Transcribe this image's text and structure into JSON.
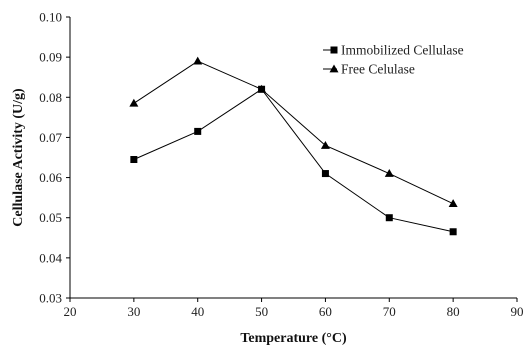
{
  "chart_data": {
    "type": "line",
    "title": "",
    "xlabel": "Temperature (°C)",
    "ylabel": "Cellulase Activity (U/g)",
    "xlim": [
      20,
      90
    ],
    "ylim": [
      0.03,
      0.1
    ],
    "xticks": [
      20,
      30,
      40,
      50,
      60,
      70,
      80,
      90
    ],
    "yticks": [
      0.03,
      0.04,
      0.05,
      0.06,
      0.07,
      0.08,
      0.09,
      0.1
    ],
    "xtick_labels": [
      "20",
      "30",
      "40",
      "50",
      "60",
      "70",
      "80",
      "90"
    ],
    "ytick_labels": [
      "0.03",
      "0.04",
      "0.05",
      "0.06",
      "0.07",
      "0.08",
      "0.09",
      "0.10"
    ],
    "grid": false,
    "legend_position": "top-right",
    "series": [
      {
        "name": "Immobilized Cellulase",
        "marker": "square",
        "color": "#000000",
        "x": [
          30,
          40,
          50,
          60,
          70,
          80
        ],
        "y": [
          0.0645,
          0.0715,
          0.082,
          0.061,
          0.05,
          0.0465
        ]
      },
      {
        "name": "Free Celulase",
        "marker": "triangle",
        "color": "#000000",
        "x": [
          30,
          40,
          50,
          60,
          70,
          80
        ],
        "y": [
          0.0785,
          0.089,
          0.082,
          0.068,
          0.061,
          0.0535
        ]
      }
    ]
  }
}
